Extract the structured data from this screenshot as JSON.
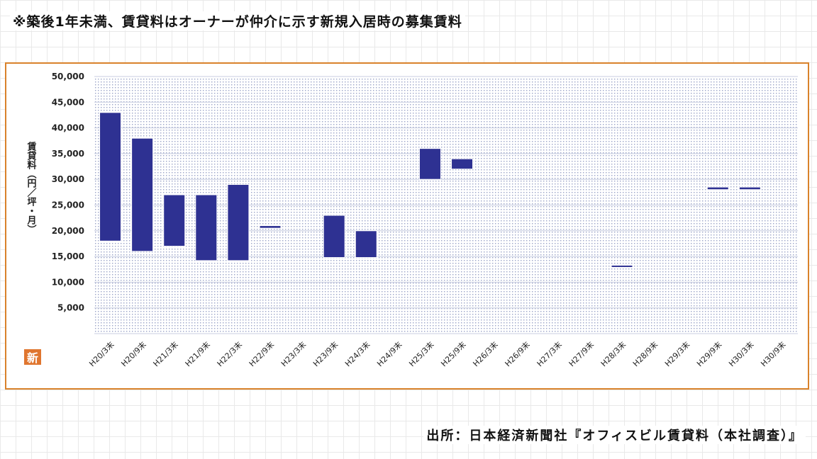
{
  "note": "※築後1年未満、賃貸料はオーナーが仲介に示す新規入居時の募集賃料",
  "source": "出所：日本経済新聞社『オフィスビル賃貸料（本社調査）』",
  "badge": "新",
  "colors": {
    "bar": "#2e3192",
    "frame": "#d9822b",
    "dots": "#9aa3c8"
  },
  "chart_data": {
    "type": "bar",
    "subtype": "floating-range",
    "ylabel": "賃貸料（円／坪・月）",
    "ylim": [
      0,
      50000
    ],
    "yticks": [
      5000,
      10000,
      15000,
      20000,
      25000,
      30000,
      35000,
      40000,
      45000,
      50000
    ],
    "ytick_labels": [
      "5,000",
      "10,000",
      "15,000",
      "20,000",
      "25,000",
      "30,000",
      "35,000",
      "40,000",
      "45,000",
      "50,000"
    ],
    "categories": [
      "H20/3末",
      "H20/9末",
      "H21/3末",
      "H21/9末",
      "H22/3末",
      "H22/9末",
      "H23/3末",
      "H23/9末",
      "H24/3末",
      "H24/9末",
      "H25/3末",
      "H25/9末",
      "H26/3末",
      "H26/9末",
      "H27/3末",
      "H27/9末",
      "H28/3末",
      "H28/9末",
      "H29/3末",
      "H29/9末",
      "H30/3末",
      "H30/9末"
    ],
    "low": [
      18000,
      16000,
      17000,
      14200,
      14200,
      20500,
      null,
      14800,
      14800,
      null,
      30000,
      32000,
      null,
      null,
      null,
      null,
      13300,
      null,
      null,
      28000,
      28000,
      null
    ],
    "high": [
      43000,
      38000,
      27000,
      27000,
      29000,
      21000,
      null,
      23000,
      20000,
      null,
      36000,
      34000,
      null,
      null,
      null,
      null,
      13300,
      null,
      null,
      28500,
      28500,
      null
    ],
    "grid": true,
    "legend": "none"
  }
}
